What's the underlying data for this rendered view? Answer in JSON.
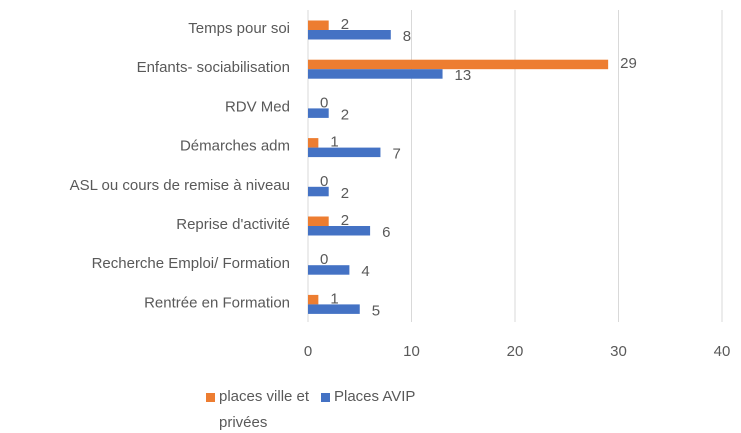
{
  "chart_data": {
    "type": "bar",
    "orientation": "horizontal",
    "categories": [
      "Temps pour soi",
      "Enfants- sociabilisation",
      "RDV Med",
      "Démarches adm",
      "ASL ou cours de remise à niveau",
      "Reprise d'activité",
      "Recherche Emploi/ Formation",
      "Rentrée en Formation"
    ],
    "series": [
      {
        "name": "places ville et privées",
        "color": "#ed7d31",
        "values": [
          2,
          29,
          0,
          1,
          0,
          2,
          0,
          1
        ]
      },
      {
        "name": "Places AVIP",
        "color": "#4472c4",
        "values": [
          8,
          13,
          2,
          7,
          2,
          6,
          4,
          5
        ]
      }
    ],
    "xlim": [
      0,
      40
    ],
    "xticks": [
      0,
      10,
      20,
      30,
      40
    ],
    "grid": true,
    "legend": "bottom"
  }
}
